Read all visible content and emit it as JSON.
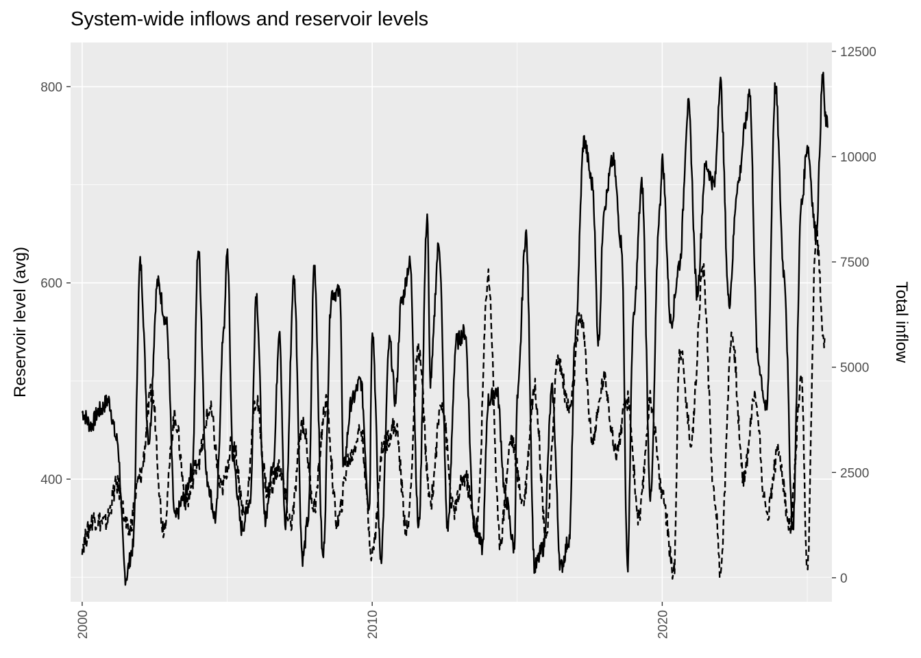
{
  "chart_data": {
    "type": "line",
    "title": "System-wide inflows and reservoir levels",
    "xlabel": "",
    "ylabel": "Reservoir level (avg)",
    "y2label": "Total inflow",
    "x_unit": "year",
    "xlim": [
      1999.6,
      2025.85
    ],
    "ylim": [
      275,
      845
    ],
    "y2lim": [
      -571,
      12710
    ],
    "x_ticks": [
      "2000",
      "2010",
      "2020"
    ],
    "y_ticks": [
      "400",
      "600",
      "800"
    ],
    "y2_ticks": [
      "0",
      "2500",
      "5000",
      "7500",
      "10000",
      "12500"
    ],
    "grid": true,
    "background": "#ebebeb",
    "grid_color": "#ffffff",
    "line_color": "#000000",
    "series": [
      {
        "axis": "left",
        "style": "solid",
        "x": [
          2000.0,
          2000.3,
          2000.6,
          2000.9,
          2001.2,
          2001.5,
          2001.75,
          2002.0,
          2002.3,
          2002.6,
          2002.9,
          2003.2,
          2003.5,
          2003.8,
          2004.0,
          2004.3,
          2004.6,
          2004.9,
          2005.0,
          2005.2,
          2005.5,
          2005.8,
          2006.0,
          2006.3,
          2006.6,
          2006.8,
          2007.0,
          2007.3,
          2007.6,
          2007.8,
          2008.0,
          2008.3,
          2008.6,
          2008.9,
          2009.0,
          2009.3,
          2009.6,
          2009.9,
          2010.0,
          2010.3,
          2010.6,
          2010.8,
          2011.0,
          2011.3,
          2011.6,
          2011.9,
          2012.0,
          2012.3,
          2012.6,
          2012.9,
          2013.2,
          2013.5,
          2013.8,
          2014.0,
          2014.3,
          2014.6,
          2014.9,
          2015.0,
          2015.3,
          2015.6,
          2015.9,
          2016.2,
          2016.5,
          2016.8,
          2017.0,
          2017.3,
          2017.6,
          2017.8,
          2018.0,
          2018.3,
          2018.6,
          2018.8,
          2019.0,
          2019.3,
          2019.6,
          2019.9,
          2020.0,
          2020.3,
          2020.6,
          2020.9,
          2021.2,
          2021.5,
          2021.8,
          2022.0,
          2022.3,
          2022.6,
          2022.9,
          2023.0,
          2023.3,
          2023.6,
          2023.9,
          2024.2,
          2024.5,
          2024.8,
          2025.0,
          2025.3,
          2025.55,
          2025.6,
          2025.7
        ],
        "y": [
          468,
          455,
          470,
          480,
          440,
          300,
          330,
          620,
          440,
          600,
          560,
          360,
          380,
          410,
          635,
          400,
          360,
          560,
          635,
          420,
          350,
          380,
          590,
          360,
          420,
          555,
          350,
          605,
          320,
          360,
          620,
          320,
          590,
          590,
          410,
          480,
          500,
          370,
          555,
          320,
          540,
          480,
          580,
          620,
          350,
          670,
          500,
          640,
          350,
          540,
          550,
          360,
          330,
          480,
          490,
          380,
          330,
          480,
          650,
          310,
          330,
          490,
          310,
          340,
          545,
          745,
          700,
          540,
          680,
          725,
          640,
          310,
          560,
          700,
          380,
          670,
          725,
          560,
          620,
          780,
          590,
          720,
          700,
          805,
          580,
          700,
          765,
          800,
          520,
          470,
          800,
          610,
          350,
          680,
          740,
          650,
          815,
          770,
          760
        ]
      },
      {
        "axis": "right",
        "style": "dashed",
        "x": [
          2000.0,
          2000.4,
          2000.8,
          2001.2,
          2001.6,
          2002.0,
          2002.4,
          2002.8,
          2003.2,
          2003.6,
          2004.0,
          2004.4,
          2004.8,
          2005.2,
          2005.6,
          2006.0,
          2006.4,
          2006.8,
          2007.2,
          2007.6,
          2008.0,
          2008.4,
          2008.8,
          2009.2,
          2009.6,
          2010.0,
          2010.4,
          2010.8,
          2011.2,
          2011.6,
          2012.0,
          2012.4,
          2012.8,
          2013.2,
          2013.6,
          2014.0,
          2014.4,
          2014.8,
          2015.2,
          2015.6,
          2016.0,
          2016.4,
          2016.8,
          2017.2,
          2017.6,
          2018.0,
          2018.4,
          2018.8,
          2019.2,
          2019.6,
          2020.0,
          2020.4,
          2020.6,
          2021.0,
          2021.4,
          2021.8,
          2022.0,
          2022.4,
          2022.8,
          2023.2,
          2023.6,
          2024.0,
          2024.4,
          2024.8,
          2025.0,
          2025.3,
          2025.6
        ],
        "y": [
          800,
          1400,
          1300,
          2200,
          1100,
          2400,
          4400,
          1200,
          3800,
          1800,
          2800,
          4000,
          2100,
          3200,
          1500,
          4200,
          2000,
          2600,
          1300,
          3700,
          1700,
          4100,
          1300,
          2800,
          3500,
          600,
          3200,
          3600,
          1100,
          5400,
          1800,
          4200,
          1600,
          2400,
          1100,
          7200,
          900,
          3300,
          1800,
          4500,
          1000,
          5200,
          4000,
          6200,
          3300,
          4700,
          3000,
          4200,
          1400,
          4200,
          2000,
          100,
          5500,
          3300,
          7300,
          2000,
          200,
          5800,
          2400,
          4300,
          1500,
          3000,
          1200,
          4600,
          150,
          8200,
          5600
        ]
      }
    ]
  }
}
